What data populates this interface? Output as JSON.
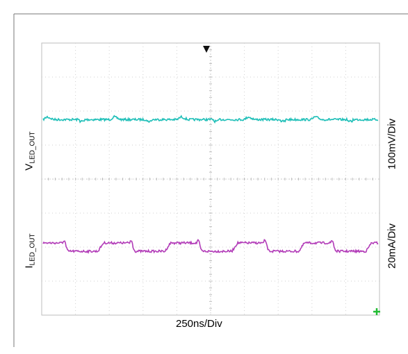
{
  "chart_data": {
    "type": "line",
    "title": "",
    "x_label": "250ns/Div",
    "x_divisions": 10,
    "y_divisions": 8,
    "grid": true,
    "series": [
      {
        "name_main": "V",
        "name_sub": "LED_OUT",
        "scale": "100mV/Div",
        "color": "#1fbfb8",
        "level_div": 5.75,
        "pattern": "flat with small periodic bumps"
      },
      {
        "name_main": "I",
        "name_sub": "LED_OUT",
        "scale": "20mA/Div",
        "color": "#b23cb8",
        "level_div": 2.0,
        "pattern": "square-like ripple, about 5 periods across screen"
      }
    ],
    "trigger_marker": "down-arrow",
    "ground_marker": "plus"
  }
}
